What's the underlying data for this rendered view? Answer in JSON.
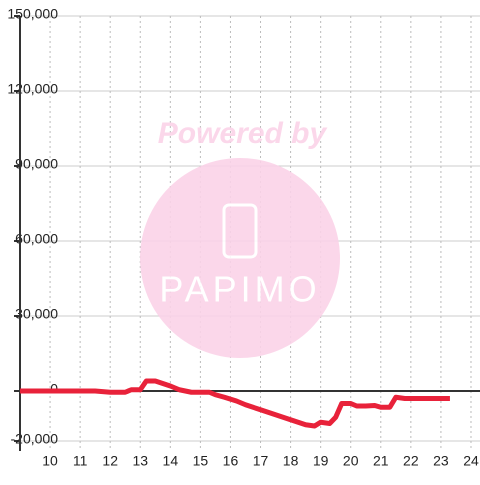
{
  "chart_data": {
    "type": "line",
    "watermark": {
      "line1": "Powered by",
      "line2": "PAPIMO"
    },
    "xlim": [
      9,
      24.3
    ],
    "ylim": [
      -24000,
      150000
    ],
    "xticks": [
      10,
      11,
      12,
      13,
      14,
      15,
      16,
      17,
      18,
      19,
      20,
      21,
      22,
      23,
      24
    ],
    "yticks": [
      {
        "value": -20000,
        "label": "-20,000"
      },
      0,
      {
        "value": 30000,
        "label": "30,000"
      },
      {
        "value": 60000,
        "label": "60,000"
      },
      {
        "value": 90000,
        "label": "90,000"
      },
      {
        "value": 120000,
        "label": "120,000"
      },
      {
        "value": 150000,
        "label": "150,000"
      }
    ],
    "grid": true,
    "series": [
      {
        "color": "#e8223a",
        "x": [
          9,
          11.5,
          12,
          12.5,
          12.7,
          13,
          13.2,
          13.5,
          14,
          14.3,
          14.7,
          15.3,
          15.5,
          15.8,
          16.2,
          16.5,
          17,
          17.5,
          18,
          18.5,
          18.8,
          19,
          19.3,
          19.5,
          19.7,
          20,
          20.2,
          20.5,
          20.8,
          21,
          21.3,
          21.5,
          21.8,
          23.3
        ],
        "values": [
          0,
          0,
          -500,
          -500,
          500,
          500,
          4000,
          4000,
          2000,
          500,
          -500,
          -500,
          -1500,
          -2500,
          -4000,
          -5500,
          -7500,
          -9500,
          -11500,
          -13500,
          -14000,
          -12500,
          -13000,
          -10500,
          -5000,
          -5000,
          -6000,
          -6000,
          -5800,
          -6500,
          -6500,
          -2500,
          -3000,
          -3000
        ]
      }
    ]
  }
}
